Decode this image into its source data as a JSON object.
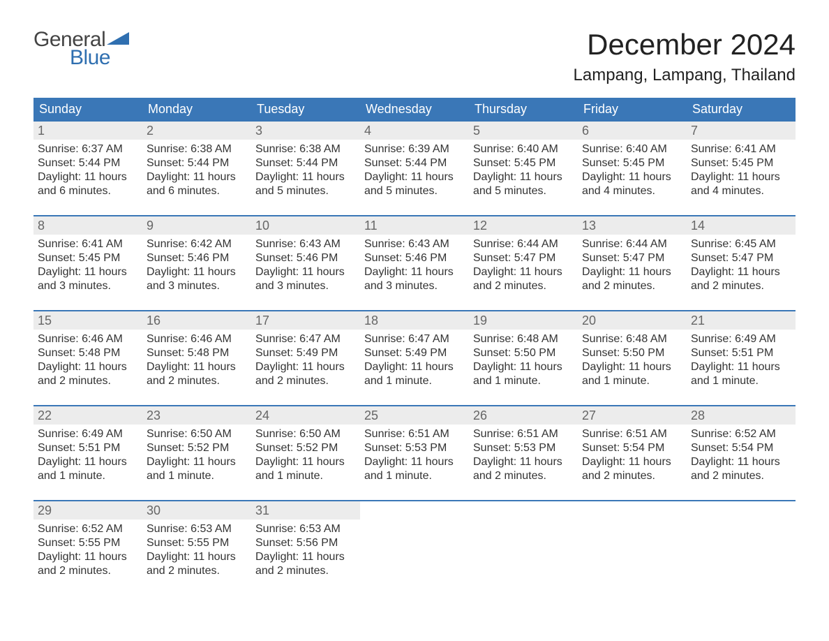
{
  "logo": {
    "word1": "General",
    "word2": "Blue",
    "word1_color": "#444444",
    "word2_color": "#2f6fb0"
  },
  "title": "December 2024",
  "location": "Lampang, Lampang, Thailand",
  "colors": {
    "header_bg": "#3a77b7",
    "header_text": "#ffffff",
    "daynum_bg": "#ececec",
    "daynum_text": "#666666",
    "body_text": "#333333",
    "page_bg": "#ffffff",
    "week_border": "#3a77b7"
  },
  "typography": {
    "title_fontsize": 42,
    "location_fontsize": 24,
    "header_fontsize": 18,
    "daynum_fontsize": 18,
    "body_fontsize": 16
  },
  "layout": {
    "columns": 7,
    "col_labels": [
      "Sunday",
      "Monday",
      "Tuesday",
      "Wednesday",
      "Thursday",
      "Friday",
      "Saturday"
    ]
  },
  "weeks": [
    {
      "days": [
        {
          "num": "1",
          "sunrise": "Sunrise: 6:37 AM",
          "sunset": "Sunset: 5:44 PM",
          "daylight1": "Daylight: 11 hours",
          "daylight2": "and 6 minutes."
        },
        {
          "num": "2",
          "sunrise": "Sunrise: 6:38 AM",
          "sunset": "Sunset: 5:44 PM",
          "daylight1": "Daylight: 11 hours",
          "daylight2": "and 6 minutes."
        },
        {
          "num": "3",
          "sunrise": "Sunrise: 6:38 AM",
          "sunset": "Sunset: 5:44 PM",
          "daylight1": "Daylight: 11 hours",
          "daylight2": "and 5 minutes."
        },
        {
          "num": "4",
          "sunrise": "Sunrise: 6:39 AM",
          "sunset": "Sunset: 5:44 PM",
          "daylight1": "Daylight: 11 hours",
          "daylight2": "and 5 minutes."
        },
        {
          "num": "5",
          "sunrise": "Sunrise: 6:40 AM",
          "sunset": "Sunset: 5:45 PM",
          "daylight1": "Daylight: 11 hours",
          "daylight2": "and 5 minutes."
        },
        {
          "num": "6",
          "sunrise": "Sunrise: 6:40 AM",
          "sunset": "Sunset: 5:45 PM",
          "daylight1": "Daylight: 11 hours",
          "daylight2": "and 4 minutes."
        },
        {
          "num": "7",
          "sunrise": "Sunrise: 6:41 AM",
          "sunset": "Sunset: 5:45 PM",
          "daylight1": "Daylight: 11 hours",
          "daylight2": "and 4 minutes."
        }
      ]
    },
    {
      "days": [
        {
          "num": "8",
          "sunrise": "Sunrise: 6:41 AM",
          "sunset": "Sunset: 5:45 PM",
          "daylight1": "Daylight: 11 hours",
          "daylight2": "and 3 minutes."
        },
        {
          "num": "9",
          "sunrise": "Sunrise: 6:42 AM",
          "sunset": "Sunset: 5:46 PM",
          "daylight1": "Daylight: 11 hours",
          "daylight2": "and 3 minutes."
        },
        {
          "num": "10",
          "sunrise": "Sunrise: 6:43 AM",
          "sunset": "Sunset: 5:46 PM",
          "daylight1": "Daylight: 11 hours",
          "daylight2": "and 3 minutes."
        },
        {
          "num": "11",
          "sunrise": "Sunrise: 6:43 AM",
          "sunset": "Sunset: 5:46 PM",
          "daylight1": "Daylight: 11 hours",
          "daylight2": "and 3 minutes."
        },
        {
          "num": "12",
          "sunrise": "Sunrise: 6:44 AM",
          "sunset": "Sunset: 5:47 PM",
          "daylight1": "Daylight: 11 hours",
          "daylight2": "and 2 minutes."
        },
        {
          "num": "13",
          "sunrise": "Sunrise: 6:44 AM",
          "sunset": "Sunset: 5:47 PM",
          "daylight1": "Daylight: 11 hours",
          "daylight2": "and 2 minutes."
        },
        {
          "num": "14",
          "sunrise": "Sunrise: 6:45 AM",
          "sunset": "Sunset: 5:47 PM",
          "daylight1": "Daylight: 11 hours",
          "daylight2": "and 2 minutes."
        }
      ]
    },
    {
      "days": [
        {
          "num": "15",
          "sunrise": "Sunrise: 6:46 AM",
          "sunset": "Sunset: 5:48 PM",
          "daylight1": "Daylight: 11 hours",
          "daylight2": "and 2 minutes."
        },
        {
          "num": "16",
          "sunrise": "Sunrise: 6:46 AM",
          "sunset": "Sunset: 5:48 PM",
          "daylight1": "Daylight: 11 hours",
          "daylight2": "and 2 minutes."
        },
        {
          "num": "17",
          "sunrise": "Sunrise: 6:47 AM",
          "sunset": "Sunset: 5:49 PM",
          "daylight1": "Daylight: 11 hours",
          "daylight2": "and 2 minutes."
        },
        {
          "num": "18",
          "sunrise": "Sunrise: 6:47 AM",
          "sunset": "Sunset: 5:49 PM",
          "daylight1": "Daylight: 11 hours",
          "daylight2": "and 1 minute."
        },
        {
          "num": "19",
          "sunrise": "Sunrise: 6:48 AM",
          "sunset": "Sunset: 5:50 PM",
          "daylight1": "Daylight: 11 hours",
          "daylight2": "and 1 minute."
        },
        {
          "num": "20",
          "sunrise": "Sunrise: 6:48 AM",
          "sunset": "Sunset: 5:50 PM",
          "daylight1": "Daylight: 11 hours",
          "daylight2": "and 1 minute."
        },
        {
          "num": "21",
          "sunrise": "Sunrise: 6:49 AM",
          "sunset": "Sunset: 5:51 PM",
          "daylight1": "Daylight: 11 hours",
          "daylight2": "and 1 minute."
        }
      ]
    },
    {
      "days": [
        {
          "num": "22",
          "sunrise": "Sunrise: 6:49 AM",
          "sunset": "Sunset: 5:51 PM",
          "daylight1": "Daylight: 11 hours",
          "daylight2": "and 1 minute."
        },
        {
          "num": "23",
          "sunrise": "Sunrise: 6:50 AM",
          "sunset": "Sunset: 5:52 PM",
          "daylight1": "Daylight: 11 hours",
          "daylight2": "and 1 minute."
        },
        {
          "num": "24",
          "sunrise": "Sunrise: 6:50 AM",
          "sunset": "Sunset: 5:52 PM",
          "daylight1": "Daylight: 11 hours",
          "daylight2": "and 1 minute."
        },
        {
          "num": "25",
          "sunrise": "Sunrise: 6:51 AM",
          "sunset": "Sunset: 5:53 PM",
          "daylight1": "Daylight: 11 hours",
          "daylight2": "and 1 minute."
        },
        {
          "num": "26",
          "sunrise": "Sunrise: 6:51 AM",
          "sunset": "Sunset: 5:53 PM",
          "daylight1": "Daylight: 11 hours",
          "daylight2": "and 2 minutes."
        },
        {
          "num": "27",
          "sunrise": "Sunrise: 6:51 AM",
          "sunset": "Sunset: 5:54 PM",
          "daylight1": "Daylight: 11 hours",
          "daylight2": "and 2 minutes."
        },
        {
          "num": "28",
          "sunrise": "Sunrise: 6:52 AM",
          "sunset": "Sunset: 5:54 PM",
          "daylight1": "Daylight: 11 hours",
          "daylight2": "and 2 minutes."
        }
      ]
    },
    {
      "days": [
        {
          "num": "29",
          "sunrise": "Sunrise: 6:52 AM",
          "sunset": "Sunset: 5:55 PM",
          "daylight1": "Daylight: 11 hours",
          "daylight2": "and 2 minutes."
        },
        {
          "num": "30",
          "sunrise": "Sunrise: 6:53 AM",
          "sunset": "Sunset: 5:55 PM",
          "daylight1": "Daylight: 11 hours",
          "daylight2": "and 2 minutes."
        },
        {
          "num": "31",
          "sunrise": "Sunrise: 6:53 AM",
          "sunset": "Sunset: 5:56 PM",
          "daylight1": "Daylight: 11 hours",
          "daylight2": "and 2 minutes."
        },
        {
          "empty": true
        },
        {
          "empty": true
        },
        {
          "empty": true
        },
        {
          "empty": true
        }
      ]
    }
  ]
}
